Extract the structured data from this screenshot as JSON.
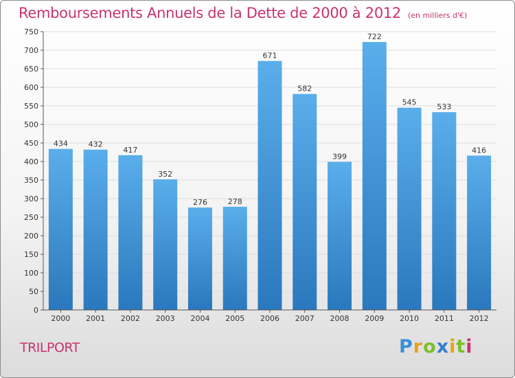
{
  "title": "Remboursements Annuels de la Dette de 2000 à 2012",
  "subtitle": "(en milliers d'€)",
  "city": "TRILPORT",
  "brand": {
    "letters": [
      "P",
      "r",
      "o",
      "x",
      "i",
      "t",
      "i"
    ],
    "colors": [
      "#3a8fd8",
      "#e8a21a",
      "#7bbf2a",
      "#2f7fcc",
      "#e8a21a",
      "#7bbf2a",
      "#c8336e"
    ]
  },
  "colors": {
    "bar_top": "#5aaeea",
    "bar_bottom": "#2a78bd",
    "title": "#c8336e",
    "axis": "#555555",
    "grid": "#dddddd"
  },
  "chart_data": {
    "type": "bar",
    "categories": [
      "2000",
      "2001",
      "2002",
      "2003",
      "2004",
      "2005",
      "2006",
      "2007",
      "2008",
      "2009",
      "2010",
      "2011",
      "2012"
    ],
    "values": [
      434,
      432,
      417,
      352,
      276,
      278,
      671,
      582,
      399,
      722,
      545,
      533,
      416
    ],
    "data_labels": [
      "434",
      "432",
      "417",
      "352",
      "276",
      "278",
      "671",
      "582",
      "399",
      "722",
      "545",
      "533",
      "416"
    ],
    "yticks": [
      "0",
      "50",
      "100",
      "150",
      "200",
      "250",
      "300",
      "350",
      "400",
      "450",
      "500",
      "550",
      "600",
      "650",
      "700",
      "750"
    ],
    "ylim": [
      0,
      750
    ],
    "grid": true,
    "xlabel": "",
    "ylabel": ""
  }
}
